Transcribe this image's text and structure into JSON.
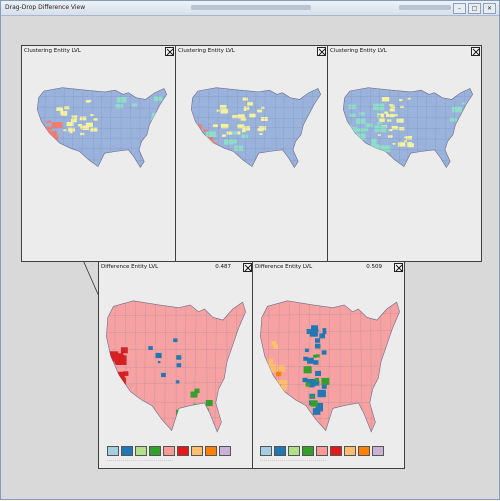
{
  "window": {
    "title": "Drag-Drop Difference View"
  },
  "top_panels": [
    {
      "label": "Clustering Entity LVL"
    },
    {
      "label": "Clustering Entity LVL"
    },
    {
      "label": "Clustering Entity LVL"
    }
  ],
  "bottom_panels": [
    {
      "label": "Difference Entity LVL",
      "value": "0.487"
    },
    {
      "label": "Difference Entity LVL",
      "value": "0.509"
    }
  ],
  "legend": {
    "colors": [
      "#a6cee3",
      "#1f78b4",
      "#b2df8a",
      "#33a02c",
      "#fb9a99",
      "#e31a1c",
      "#fdbf6f",
      "#ff7f00",
      "#cab2d6"
    ]
  },
  "colors": {
    "map_blue": "#9ab3dd",
    "map_yellow": "#f6f3a0",
    "map_salmon": "#f07f72",
    "map_teal": "#8fdccb",
    "diff_pink": "#f7a2a2",
    "diff_red": "#d61f1f"
  }
}
